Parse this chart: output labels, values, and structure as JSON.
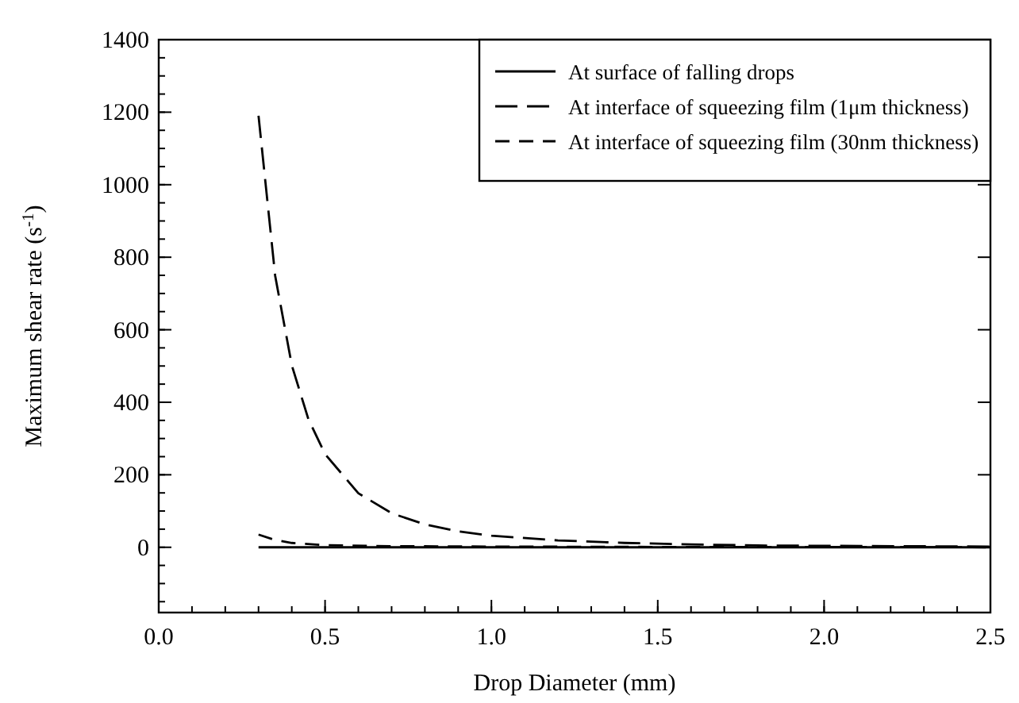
{
  "chart_data": {
    "type": "line",
    "xlabel": "Drop Diameter (mm)",
    "ylabel": "Maximum shear rate (s$^{-1}$)",
    "xlim": [
      0,
      2.5
    ],
    "xticks": [
      {
        "value": 0,
        "label": "0.0"
      },
      0.5,
      {
        "value": 1,
        "label": "1.0"
      },
      1.5,
      {
        "value": 2,
        "label": "2.0"
      },
      2.5
    ],
    "ylim": [
      -180,
      1400
    ],
    "yticks": [
      0,
      200,
      400,
      600,
      800,
      1000,
      1200,
      1400
    ],
    "grid": false,
    "legend": "top right",
    "marker": "none",
    "series": [
      {
        "name": "At surface of falling drops",
        "color": "#000000",
        "line_style": "solid",
        "x": [
          0.3,
          0.5,
          1.0,
          1.5,
          2.0,
          2.5
        ],
        "values": [
          0,
          0,
          0,
          0,
          0,
          0
        ]
      },
      {
        "name": "At interface of squeezing film (1μm thickness)",
        "color": "#000000",
        "line_style": "dashed",
        "x": [
          0.3,
          0.35,
          0.4,
          0.45,
          0.5,
          0.6,
          0.7,
          0.8,
          0.9,
          1.0,
          1.2,
          1.4,
          1.6,
          1.8,
          2.0,
          2.25,
          2.5
        ],
        "values": [
          1190,
          749,
          502,
          353,
          257,
          149,
          94,
          63,
          44,
          32,
          19,
          12,
          8,
          5,
          4,
          3,
          2
        ]
      },
      {
        "name": "At interface of squeezing film (30nm thickness)",
        "color": "#000000",
        "line_style": "dashed",
        "x": [
          0.3,
          0.35,
          0.4,
          0.5,
          0.7,
          1.0,
          1.5,
          2.0,
          2.5
        ],
        "values": [
          35,
          20,
          12,
          6,
          3,
          2,
          1,
          1,
          0
        ]
      }
    ]
  }
}
